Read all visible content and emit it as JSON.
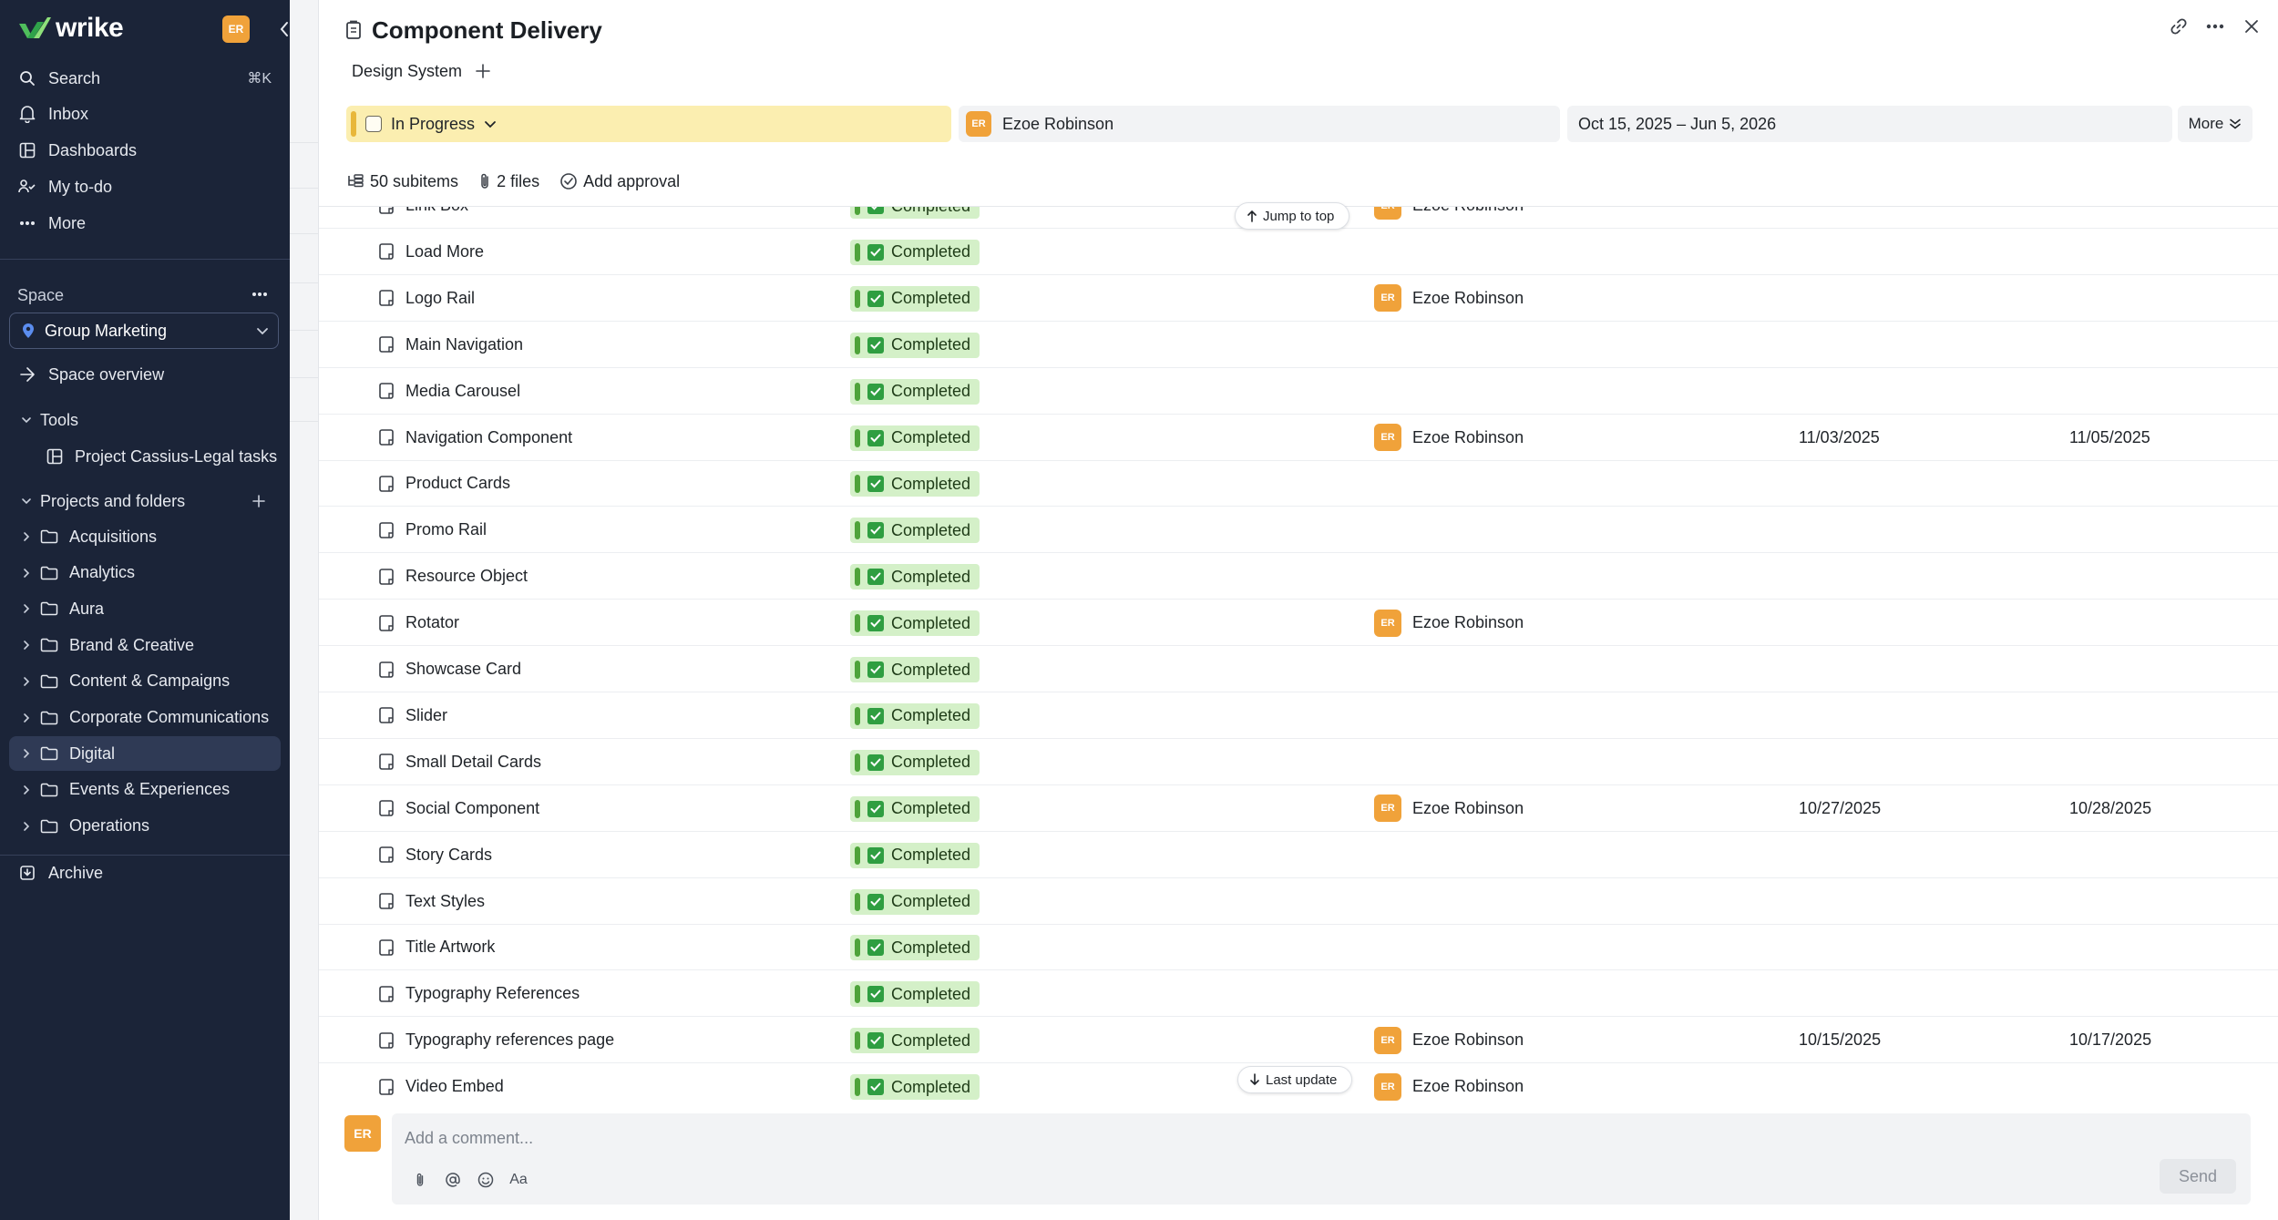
{
  "colors": {
    "sidebar_bg": "#1b2438",
    "accent_avatar": "#f0a23a",
    "status_in_progress": "#fbeeb0",
    "status_completed": "#d4f0c8",
    "check_green": "#2f9e41"
  },
  "sidebar": {
    "logo": "wrike",
    "user_initials": "ER",
    "nav": [
      {
        "label": "Search",
        "icon": "search-icon",
        "shortcut": "⌘K"
      },
      {
        "label": "Inbox",
        "icon": "bell-icon"
      },
      {
        "label": "Dashboards",
        "icon": "dashboard-icon"
      },
      {
        "label": "My to-do",
        "icon": "todo-icon"
      },
      {
        "label": "More",
        "icon": "dots-icon"
      }
    ],
    "space_label": "Space",
    "space_selected": "Group Marketing",
    "space_overview": "Space overview",
    "tools_label": "Tools",
    "tools_items": [
      {
        "label": "Project Cassius-Legal tasks",
        "icon": "board-icon"
      }
    ],
    "projects_label": "Projects and folders",
    "folders": [
      {
        "label": "Acquisitions",
        "active": false
      },
      {
        "label": "Analytics",
        "active": false
      },
      {
        "label": "Aura",
        "active": false
      },
      {
        "label": "Brand & Creative",
        "active": false
      },
      {
        "label": "Content & Campaigns",
        "active": false
      },
      {
        "label": "Corporate Communications",
        "active": false
      },
      {
        "label": "Digital",
        "active": true
      },
      {
        "label": "Events & Experiences",
        "active": false
      },
      {
        "label": "Operations",
        "active": false
      }
    ],
    "archive": "Archive"
  },
  "task": {
    "title": "Component Delivery",
    "folder": "Design System",
    "status": "In Progress",
    "assignee": {
      "initials": "ER",
      "name": "Ezoe Robinson"
    },
    "dates": "Oct 15, 2025 – Jun 5, 2026",
    "more": "More",
    "subitems": "50 subitems",
    "files": "2 files",
    "approval": "Add approval"
  },
  "subtasks": [
    {
      "name": "Link Box",
      "status": "Completed",
      "assignee": "Ezoe Robinson",
      "initials": "ER",
      "start": "",
      "due": ""
    },
    {
      "name": "Load More",
      "status": "Completed",
      "assignee": "",
      "initials": "",
      "start": "",
      "due": ""
    },
    {
      "name": "Logo Rail",
      "status": "Completed",
      "assignee": "Ezoe Robinson",
      "initials": "ER",
      "start": "",
      "due": ""
    },
    {
      "name": "Main Navigation",
      "status": "Completed",
      "assignee": "",
      "initials": "",
      "start": "",
      "due": ""
    },
    {
      "name": "Media Carousel",
      "status": "Completed",
      "assignee": "",
      "initials": "",
      "start": "",
      "due": ""
    },
    {
      "name": "Navigation Component",
      "status": "Completed",
      "assignee": "Ezoe Robinson",
      "initials": "ER",
      "start": "11/03/2025",
      "due": "11/05/2025"
    },
    {
      "name": "Product Cards",
      "status": "Completed",
      "assignee": "",
      "initials": "",
      "start": "",
      "due": ""
    },
    {
      "name": "Promo Rail",
      "status": "Completed",
      "assignee": "",
      "initials": "",
      "start": "",
      "due": ""
    },
    {
      "name": "Resource Object",
      "status": "Completed",
      "assignee": "",
      "initials": "",
      "start": "",
      "due": ""
    },
    {
      "name": "Rotator",
      "status": "Completed",
      "assignee": "Ezoe Robinson",
      "initials": "ER",
      "start": "",
      "due": ""
    },
    {
      "name": "Showcase Card",
      "status": "Completed",
      "assignee": "",
      "initials": "",
      "start": "",
      "due": ""
    },
    {
      "name": "Slider",
      "status": "Completed",
      "assignee": "",
      "initials": "",
      "start": "",
      "due": ""
    },
    {
      "name": "Small Detail Cards",
      "status": "Completed",
      "assignee": "",
      "initials": "",
      "start": "",
      "due": ""
    },
    {
      "name": "Social Component",
      "status": "Completed",
      "assignee": "Ezoe Robinson",
      "initials": "ER",
      "start": "10/27/2025",
      "due": "10/28/2025"
    },
    {
      "name": "Story Cards",
      "status": "Completed",
      "assignee": "",
      "initials": "",
      "start": "",
      "due": ""
    },
    {
      "name": "Text Styles",
      "status": "Completed",
      "assignee": "",
      "initials": "",
      "start": "",
      "due": ""
    },
    {
      "name": "Title Artwork",
      "status": "Completed",
      "assignee": "",
      "initials": "",
      "start": "",
      "due": ""
    },
    {
      "name": "Typography References",
      "status": "Completed",
      "assignee": "",
      "initials": "",
      "start": "",
      "due": ""
    },
    {
      "name": "Typography references page",
      "status": "Completed",
      "assignee": "Ezoe Robinson",
      "initials": "ER",
      "start": "10/15/2025",
      "due": "10/17/2025"
    },
    {
      "name": "Video Embed",
      "status": "Completed",
      "assignee": "Ezoe Robinson",
      "initials": "ER",
      "start": "",
      "due": ""
    }
  ],
  "floating": {
    "jump_top": "Jump to top",
    "last_update": "Last update"
  },
  "comment": {
    "initials": "ER",
    "placeholder": "Add a comment...",
    "send": "Send",
    "format_label": "Aa"
  }
}
